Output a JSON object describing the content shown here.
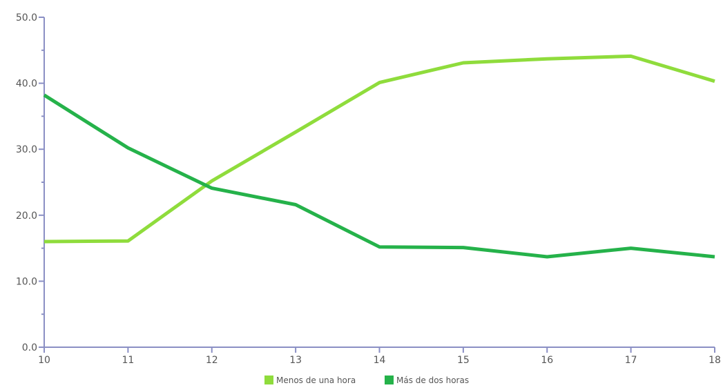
{
  "chart_data": {
    "type": "line",
    "title": "",
    "xlabel": "",
    "ylabel": "",
    "x": [
      10,
      11,
      12,
      13,
      14,
      15,
      16,
      17,
      18
    ],
    "xlim": [
      10,
      18
    ],
    "ylim": [
      0,
      50
    ],
    "y_ticks": [
      "0.0",
      "10.0",
      "20.0",
      "30.0",
      "40.0",
      "50.0"
    ],
    "x_ticks": [
      "10",
      "11",
      "12",
      "13",
      "14",
      "15",
      "16",
      "17",
      "18"
    ],
    "grid": false,
    "legend_position": "bottom",
    "series": [
      {
        "name": "Menos de una hora",
        "color": "#8fdc3c",
        "values": [
          16.0,
          16.1,
          25.2,
          32.6,
          40.1,
          43.1,
          43.7,
          44.1,
          40.3
        ]
      },
      {
        "name": "Más de dos horas",
        "color": "#25b24a",
        "values": [
          38.2,
          30.2,
          24.1,
          21.6,
          15.2,
          15.1,
          13.7,
          15.0,
          13.7
        ]
      }
    ]
  }
}
